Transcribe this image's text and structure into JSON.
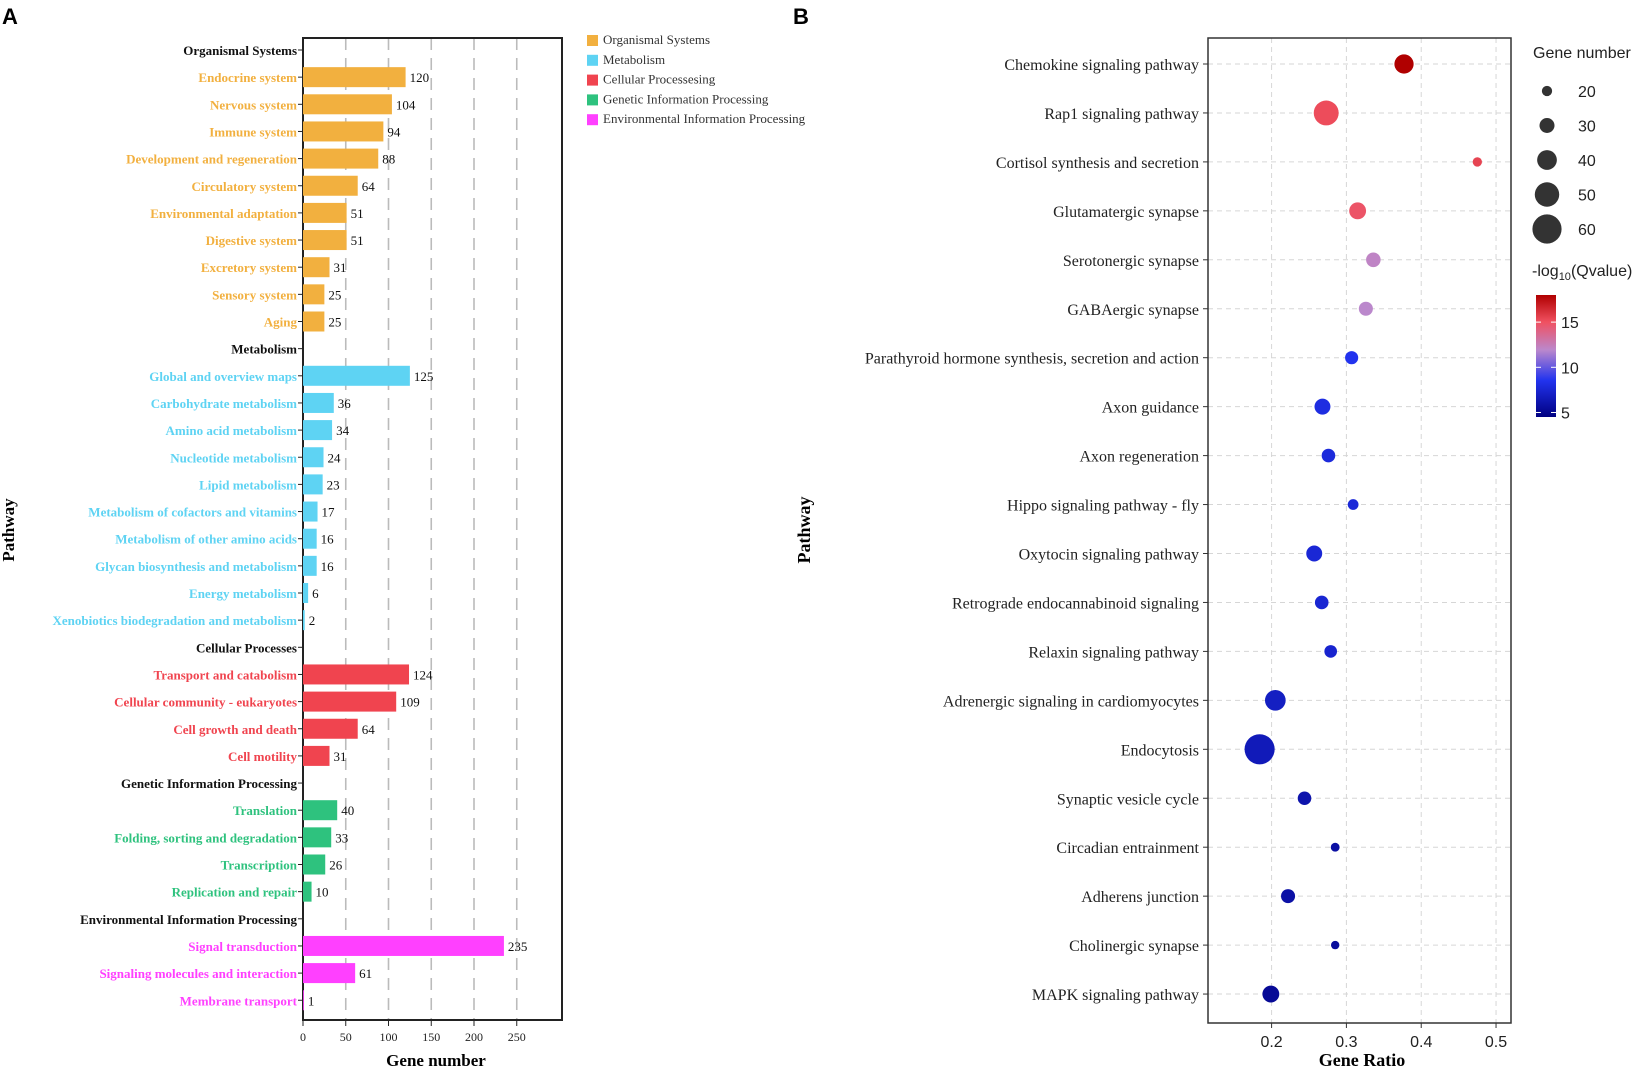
{
  "chart_data": [
    {
      "panel_label": "A",
      "type": "bar",
      "orientation": "horizontal",
      "xlabel": "Gene number",
      "ylabel": "Pathway",
      "xlim": [
        0,
        290
      ],
      "xticks": [
        0,
        50,
        100,
        150,
        200,
        250
      ],
      "grid": "vertical-dashed",
      "legend_position": "top-right",
      "groups": [
        {
          "name": "Organismal Systems",
          "color": "#F2B03F",
          "items": [
            {
              "label": "Endocrine system",
              "value": 120
            },
            {
              "label": "Nervous system",
              "value": 104
            },
            {
              "label": "Immune system",
              "value": 94
            },
            {
              "label": "Development and regeneration",
              "value": 88
            },
            {
              "label": "Circulatory system",
              "value": 64
            },
            {
              "label": "Environmental adaptation",
              "value": 51
            },
            {
              "label": "Digestive system",
              "value": 51
            },
            {
              "label": "Excretory system",
              "value": 31
            },
            {
              "label": "Sensory system",
              "value": 25
            },
            {
              "label": "Aging",
              "value": 25
            }
          ]
        },
        {
          "name": "Metabolism",
          "color": "#5ED3F3",
          "items": [
            {
              "label": "Global and overview maps",
              "value": 125
            },
            {
              "label": "Carbohydrate metabolism",
              "value": 36
            },
            {
              "label": "Amino acid metabolism",
              "value": 34
            },
            {
              "label": "Nucleotide metabolism",
              "value": 24
            },
            {
              "label": "Lipid metabolism",
              "value": 23
            },
            {
              "label": "Metabolism of cofactors and vitamins",
              "value": 17
            },
            {
              "label": "Metabolism of other amino acids",
              "value": 16
            },
            {
              "label": "Glycan biosynthesis and metabolism",
              "value": 16
            },
            {
              "label": "Energy metabolism",
              "value": 6
            },
            {
              "label": "Xenobiotics biodegradation and metabolism",
              "value": 2
            }
          ]
        },
        {
          "name": "Cellular Processes",
          "color": "#F0444F",
          "items": [
            {
              "label": "Transport and catabolism",
              "value": 124
            },
            {
              "label": "Cellular community - eukaryotes",
              "value": 109
            },
            {
              "label": "Cell growth and death",
              "value": 64
            },
            {
              "label": "Cell motility",
              "value": 31
            }
          ]
        },
        {
          "name": "Genetic Information Processing",
          "color": "#2EC27E",
          "items": [
            {
              "label": "Translation",
              "value": 40
            },
            {
              "label": "Folding, sorting and degradation",
              "value": 33
            },
            {
              "label": "Transcription",
              "value": 26
            },
            {
              "label": "Replication and repair",
              "value": 10
            }
          ]
        },
        {
          "name": "Environmental Information Processing",
          "color": "#FF40FF",
          "items": [
            {
              "label": "Signal transduction",
              "value": 235
            },
            {
              "label": "Signaling molecules and interaction",
              "value": 61
            },
            {
              "label": "Membrane transport",
              "value": 1
            }
          ]
        }
      ],
      "legend": [
        {
          "label": "Organismal Systems",
          "color": "#F2B03F"
        },
        {
          "label": "Metabolism",
          "color": "#5ED3F3"
        },
        {
          "label": "Cellular Processesing",
          "color": "#F0444F"
        },
        {
          "label": "Genetic Information Processing",
          "color": "#2EC27E"
        },
        {
          "label": "Environmental Information Processing",
          "color": "#FF40FF"
        }
      ]
    },
    {
      "panel_label": "B",
      "type": "scatter",
      "xlabel": "Gene Ratio",
      "ylabel": "Pathway",
      "xlim": [
        0.115,
        0.52
      ],
      "xticks": [
        0.2,
        0.3,
        0.4,
        0.5
      ],
      "xtick_labels": [
        "0.2",
        "0.3",
        "0.4",
        "0.5"
      ],
      "grid": "dashed",
      "size_legend": {
        "title": "Gene number",
        "values": [
          20,
          30,
          40,
          50,
          60
        ]
      },
      "color_legend": {
        "title_main": "-log",
        "title_sub": "10",
        "title_rest": "(Qvalue)",
        "ticks": [
          5,
          10,
          15
        ],
        "range": [
          4.5,
          18
        ],
        "colors": [
          "#000080",
          "#2233EE",
          "#BB88CC",
          "#F05060",
          "#B00000"
        ]
      },
      "points": [
        {
          "pathway": "Chemokine signaling pathway",
          "ratio": 0.377,
          "genes": 39,
          "neglog10q": 18
        },
        {
          "pathway": "Rap1 signaling pathway",
          "ratio": 0.273,
          "genes": 51,
          "neglog10q": 14.2
        },
        {
          "pathway": "Cortisol synthesis and secretion",
          "ratio": 0.475,
          "genes": 18,
          "neglog10q": 14.6
        },
        {
          "pathway": "Glutamatergic synapse",
          "ratio": 0.315,
          "genes": 34,
          "neglog10q": 13.8
        },
        {
          "pathway": "Serotonergic synapse",
          "ratio": 0.336,
          "genes": 29,
          "neglog10q": 11.2
        },
        {
          "pathway": "GABAergic synapse",
          "ratio": 0.326,
          "genes": 28,
          "neglog10q": 11.0
        },
        {
          "pathway": "Parathyroid hormone synthesis, secretion and action",
          "ratio": 0.307,
          "genes": 26,
          "neglog10q": 8.0
        },
        {
          "pathway": "Axon guidance",
          "ratio": 0.268,
          "genes": 32,
          "neglog10q": 7.6
        },
        {
          "pathway": "Axon regeneration",
          "ratio": 0.276,
          "genes": 27,
          "neglog10q": 7.4
        },
        {
          "pathway": "Hippo signaling pathway - fly",
          "ratio": 0.309,
          "genes": 21,
          "neglog10q": 7.3
        },
        {
          "pathway": "Oxytocin signaling pathway",
          "ratio": 0.257,
          "genes": 32,
          "neglog10q": 7.2
        },
        {
          "pathway": "Retrograde endocannabinoid signaling",
          "ratio": 0.267,
          "genes": 27,
          "neglog10q": 7.1
        },
        {
          "pathway": "Relaxin signaling pathway",
          "ratio": 0.279,
          "genes": 25,
          "neglog10q": 7.0
        },
        {
          "pathway": "Adrenergic signaling in cardiomyocytes",
          "ratio": 0.205,
          "genes": 42,
          "neglog10q": 6.6
        },
        {
          "pathway": "Endocytosis",
          "ratio": 0.184,
          "genes": 62,
          "neglog10q": 6.3
        },
        {
          "pathway": "Synaptic vesicle cycle",
          "ratio": 0.244,
          "genes": 27,
          "neglog10q": 5.9
        },
        {
          "pathway": "Circadian entrainment",
          "ratio": 0.285,
          "genes": 17,
          "neglog10q": 5.6
        },
        {
          "pathway": "Adherens junction",
          "ratio": 0.222,
          "genes": 28,
          "neglog10q": 5.7
        },
        {
          "pathway": "Cholinergic synapse",
          "ratio": 0.285,
          "genes": 16,
          "neglog10q": 5.4
        },
        {
          "pathway": "MAPK signaling pathway",
          "ratio": 0.199,
          "genes": 34,
          "neglog10q": 5.2
        }
      ]
    }
  ]
}
